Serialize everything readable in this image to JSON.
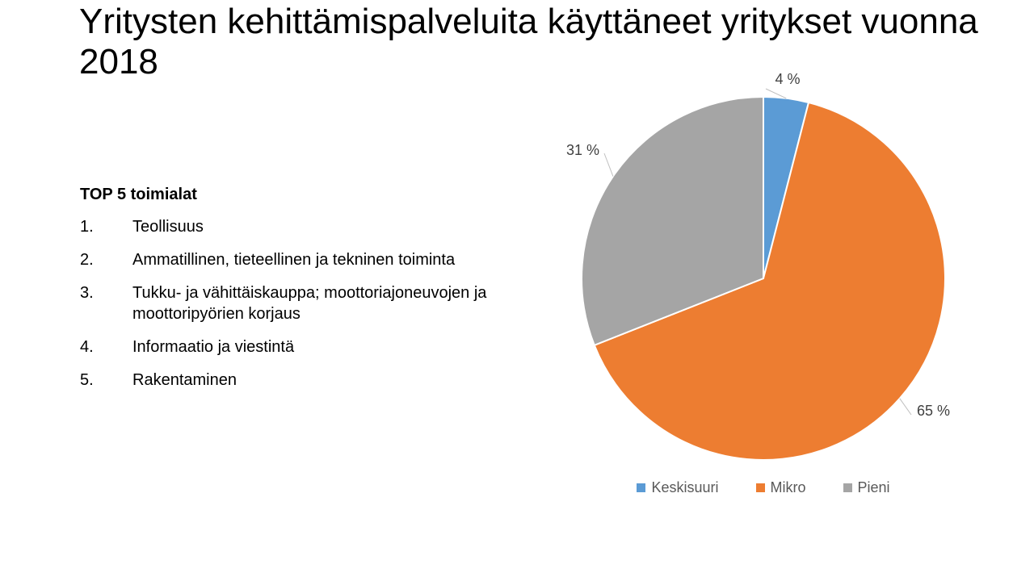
{
  "slide": {
    "title": "Yritysten kehittämispalveluita käyttäneet yritykset vuonna 2018"
  },
  "top_list": {
    "heading": "TOP 5 toimialat",
    "items": [
      {
        "number": "1.",
        "text": "Teollisuus"
      },
      {
        "number": "2.",
        "text": "Ammatillinen, tieteellinen ja tekninen toiminta"
      },
      {
        "number": "3.",
        "text": "Tukku- ja vähittäiskauppa; moottoriajoneuvojen ja moottoripyörien korjaus"
      },
      {
        "number": "4.",
        "text": "Informaatio ja viestintä"
      },
      {
        "number": "5.",
        "text": "Rakentaminen"
      }
    ]
  },
  "chart_data": {
    "type": "pie",
    "title": "",
    "categories": [
      "Keskisuuri",
      "Mikro",
      "Pieni"
    ],
    "values": [
      4,
      65,
      31
    ],
    "data_labels": [
      "4 %",
      "65 %",
      "31 %"
    ],
    "colors": [
      "#5b9bd5",
      "#ed7d31",
      "#a5a5a5"
    ],
    "legend_position": "bottom"
  }
}
